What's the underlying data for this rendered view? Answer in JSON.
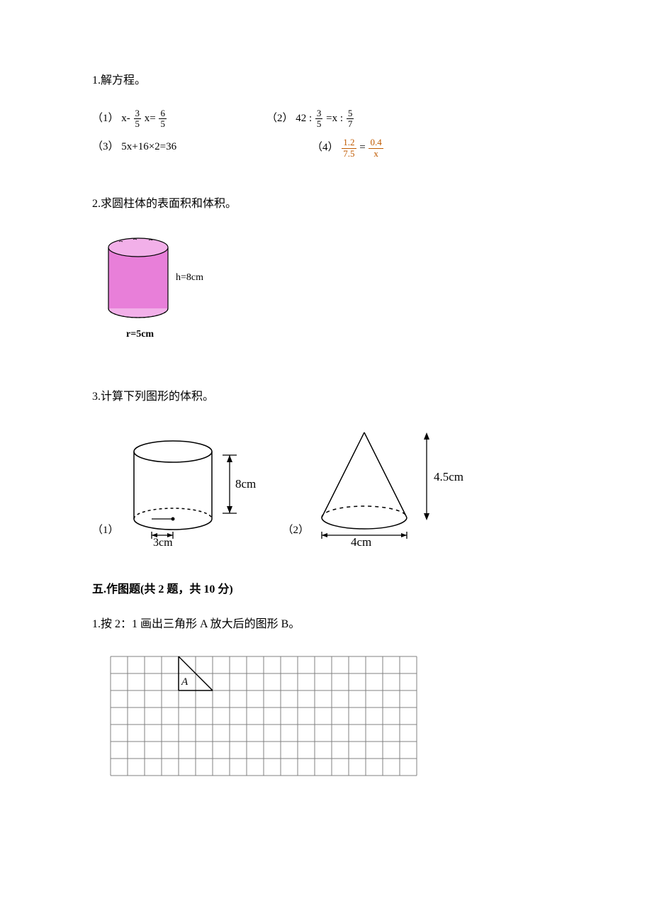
{
  "q1": {
    "heading": "1.解方程。",
    "items": [
      {
        "label": "（1）",
        "expr_prefix": "x- ",
        "f1_num": "3",
        "f1_den": "5",
        "mid": " x= ",
        "f2_num": "6",
        "f2_den": "5"
      },
      {
        "label": "（2）",
        "expr_prefix": "42 : ",
        "f1_num": "3",
        "f1_den": "5",
        "mid": " =x : ",
        "f2_num": "5",
        "f2_den": "7"
      },
      {
        "label": "（3）",
        "plain": "5x+16×2=36"
      },
      {
        "label": "（4）",
        "f1_num": "1.2",
        "f1_den": "7.5",
        "mid": " = ",
        "f2_num": "0.4",
        "f2_den": "x"
      }
    ]
  },
  "q2": {
    "heading": "2.求圆柱体的表面积和体积。",
    "cylinder": {
      "h_label": "h=8cm",
      "r_label": "r=5cm",
      "fill": "#e87fd9",
      "stroke": "#000000",
      "top_fill": "#f2b0e9"
    }
  },
  "q3": {
    "heading": "3.计算下列图形的体积。",
    "fig1": {
      "label": "（1）",
      "height_label": "8cm",
      "radius_label": "3cm"
    },
    "fig2": {
      "label": "（2）",
      "height_label": "4.5cm",
      "diameter_label": "4cm"
    }
  },
  "section5": {
    "heading": "五.作图题(共 2 题，共 10 分)",
    "q1": "1.按 2：1 画出三角形 A 放大后的图形 B。",
    "triangle_label": "A",
    "grid": {
      "cols": 18,
      "rows": 7,
      "cell": 24
    }
  },
  "colors": {
    "text": "#000000",
    "orange": "#c05a00",
    "grid_line": "#808080"
  }
}
